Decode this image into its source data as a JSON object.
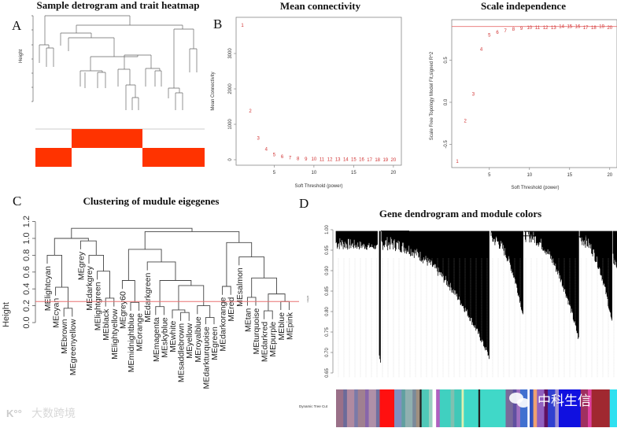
{
  "panels": {
    "a": {
      "letter": "A",
      "title": "Sample detrogram and trait heatmap"
    },
    "b": {
      "letter": "B",
      "title": "Mean connectivity"
    },
    "b2": {
      "title": "Scale independence"
    },
    "c": {
      "letter": "C",
      "title": "Clustering of mudule eigegenes"
    },
    "d": {
      "letter": "D",
      "title": "Gene dendrogram and module colors",
      "color_row_label": "Dynamic Tree Cut",
      "ylabel": "Height"
    }
  },
  "watermarks": {
    "wechat": "中科生信",
    "corner": "大数跨境"
  },
  "colors": {
    "accent_red": "#d03030",
    "heat_red": "#ff3300",
    "cut_line": "#e87070"
  },
  "chart_data": [
    {
      "type": "scatter",
      "title": "Mean connectivity",
      "xlabel": "Soft Threshold (power)",
      "ylabel": "Mean Connectivity",
      "xlim": [
        1,
        20
      ],
      "ylim": [
        0,
        3800
      ],
      "xticks": [
        "5",
        "10",
        "15",
        "20"
      ],
      "yticks": [
        "0",
        "1000",
        "2000",
        "3000"
      ],
      "x": [
        1,
        2,
        3,
        4,
        5,
        6,
        7,
        8,
        9,
        10,
        11,
        12,
        13,
        14,
        15,
        16,
        17,
        18,
        19,
        20
      ],
      "y": [
        3800,
        1380,
        610,
        300,
        150,
        90,
        55,
        35,
        25,
        18,
        14,
        11,
        9,
        8,
        7,
        6,
        5,
        5,
        4,
        4
      ]
    },
    {
      "type": "scatter",
      "title": "Scale independence",
      "xlabel": "Soft Threshold (power)",
      "ylabel": "Scale Free Topology Model Fit,signed R^2",
      "xlim": [
        1,
        20
      ],
      "ylim": [
        -0.75,
        0.92
      ],
      "xticks": [
        "5",
        "10",
        "15",
        "20"
      ],
      "yticks": [
        "-0.5",
        "0.0",
        "0.5"
      ],
      "hline": 0.9,
      "x": [
        1,
        2,
        3,
        4,
        5,
        6,
        7,
        8,
        9,
        10,
        11,
        12,
        13,
        14,
        15,
        16,
        17,
        18,
        19,
        20
      ],
      "y": [
        -0.7,
        -0.22,
        0.1,
        0.63,
        0.8,
        0.83,
        0.85,
        0.87,
        0.88,
        0.89,
        0.89,
        0.89,
        0.89,
        0.9,
        0.9,
        0.9,
        0.89,
        0.89,
        0.9,
        0.89
      ]
    },
    {
      "type": "dendrogram",
      "title": "Clustering of mudule eigegenes",
      "ylabel": "Height",
      "ylim": [
        0,
        1.2
      ],
      "yticks": [
        "0.0",
        "0.2",
        "0.4",
        "0.6",
        "0.8",
        "1.0",
        "1.2"
      ],
      "cut_height": 0.25,
      "tree": [
        1.12,
        [
          1.0,
          [
            0.8,
            "MElightcyan",
            [
              0.42,
              "MEcyan",
              [
                0.17,
                "MEbrown",
                "MEgreenyellow"
              ]
            ]
          ],
          [
            0.97,
            "MEgrey",
            [
              0.8,
              "MEdarkgrey",
              [
                0.61,
                "MElightgreen",
                [
                  0.29,
                  "MEblack",
                  "MElightyellow"
                ]
              ]
            ]
          ]
        ],
        [
          1.08,
          [
            0.87,
            [
              0.5,
              "MEgrey60",
              [
                0.24,
                "MEmidnightblue",
                "MEorange"
              ]
            ],
            [
              0.72,
              "MEdarkgreen",
              [
                0.5,
                [
                  0.19,
                  "MEmagenta",
                  "MEskyblue"
                ],
                [
                  0.44,
                  [
                    0.15,
                    "MEwhite",
                    [
                      0.12,
                      "MEsaddlebrown",
                      "MEyellow"
                    ]
                  ],
                  [
                    0.2,
                    "MEroyalblue",
                    [
                      0.06,
                      "MEdarkturquoise",
                      "MEgreen"
                    ]
                  ]
                ]
              ]
            ]
          ],
          [
            0.95,
            [
              0.43,
              "MEdarkorange",
              "MEred"
            ],
            [
              0.78,
              "MEsalmon",
              [
                0.53,
                [
                  0.3,
                  "MEtan",
                  "MEturquoise"
                ],
                [
                  0.34,
                  [
                    0.14,
                    "MEdarkred",
                    "MEpurple"
                  ],
                  [
                    0.25,
                    "MEblue",
                    "MEpink"
                  ]
                ]
              ]
            ]
          ]
        ]
      ]
    },
    {
      "type": "dendrogram",
      "title": "Gene dendrogram and module colors",
      "ylim": [
        0.63,
        1.0
      ],
      "yticks": [
        "0.65",
        "0.70",
        "0.75",
        "0.80",
        "0.85",
        "0.90",
        "0.95",
        "1.00"
      ],
      "module_colors": [
        {
          "c": "#9a7088",
          "w": 2
        },
        {
          "c": "#6b6b9a",
          "w": 1
        },
        {
          "c": "#b08aa0",
          "w": 2
        },
        {
          "c": "#7a7aa8",
          "w": 1
        },
        {
          "c": "#a08090",
          "w": 2
        },
        {
          "c": "#8866aa",
          "w": 1
        },
        {
          "c": "#b090a8",
          "w": 2
        },
        {
          "c": "#7070a0",
          "w": 1
        },
        {
          "c": "#ff1010",
          "w": 4
        },
        {
          "c": "#8090c0",
          "w": 2
        },
        {
          "c": "#60a0a0",
          "w": 1
        },
        {
          "c": "#90b0b0",
          "w": 2
        },
        {
          "c": "#7a8a9a",
          "w": 1
        },
        {
          "c": "#a09080",
          "w": 1
        },
        {
          "c": "#222222",
          "w": 0.5
        },
        {
          "c": "#50c8b8",
          "w": 2
        },
        {
          "c": "#9ad0c0",
          "w": 1
        },
        {
          "c": "#ffffff",
          "w": 1
        },
        {
          "c": "#b060c0",
          "w": 1
        },
        {
          "c": "#40d0c0",
          "w": 3
        },
        {
          "c": "#80c0b0",
          "w": 1
        },
        {
          "c": "#40c8b8",
          "w": 2
        },
        {
          "c": "#e0f0b0",
          "w": 0.6
        },
        {
          "c": "#40d8c8",
          "w": 4
        },
        {
          "c": "#222222",
          "w": 0.5
        },
        {
          "c": "#40d8c8",
          "w": 7
        },
        {
          "c": "#7a6a9a",
          "w": 2
        },
        {
          "c": "#6050a0",
          "w": 1
        },
        {
          "c": "#a070c0",
          "w": 1
        },
        {
          "c": "#4070d0",
          "w": 2
        },
        {
          "c": "#ffffff",
          "w": 0.6
        },
        {
          "c": "#3050c0",
          "w": 1
        },
        {
          "c": "#f0a070",
          "w": 1
        },
        {
          "c": "#9060c0",
          "w": 2
        },
        {
          "c": "#601060",
          "w": 1
        },
        {
          "c": "#3040d0",
          "w": 2
        },
        {
          "c": "#a090d0",
          "w": 1
        },
        {
          "c": "#1010e0",
          "w": 6
        },
        {
          "c": "#a03060",
          "w": 2
        },
        {
          "c": "#e040a0",
          "w": 1
        },
        {
          "c": "#a02830",
          "w": 5
        },
        {
          "c": "#30e0f0",
          "w": 2
        }
      ]
    }
  ]
}
